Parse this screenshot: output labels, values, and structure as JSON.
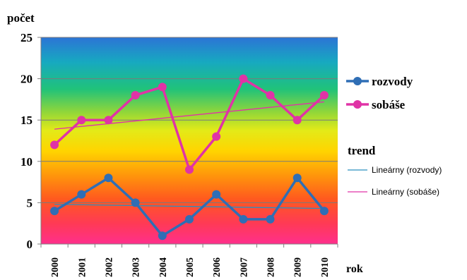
{
  "chart_data": {
    "type": "line",
    "ylabel": "počet",
    "xlabel": "rok",
    "categories": [
      "2000",
      "2001",
      "2002",
      "2003",
      "2004",
      "2005",
      "2006",
      "2007",
      "2008",
      "2009",
      "2010"
    ],
    "ylim": [
      0,
      25
    ],
    "yticks": [
      0,
      5,
      10,
      15,
      20,
      25
    ],
    "grid": true,
    "legend_position": "right",
    "series": [
      {
        "name": "rozvody",
        "color": "#2f6eb5",
        "values": [
          4,
          6,
          8,
          5,
          1,
          3,
          6,
          3,
          3,
          8,
          4
        ]
      },
      {
        "name": "sobáše",
        "color": "#e033a6",
        "values": [
          12,
          15,
          15,
          18,
          19,
          9,
          13,
          20,
          18,
          15,
          18
        ]
      }
    ],
    "trend_title": "trend",
    "trendlines": [
      {
        "name": "Lineárny (rozvody)",
        "color": "#2a8fbf",
        "start": 4.8,
        "end": 4.3
      },
      {
        "name": "Lineárny (sobáše)",
        "color": "#e033a6",
        "start": 13.9,
        "end": 17.2
      }
    ]
  }
}
